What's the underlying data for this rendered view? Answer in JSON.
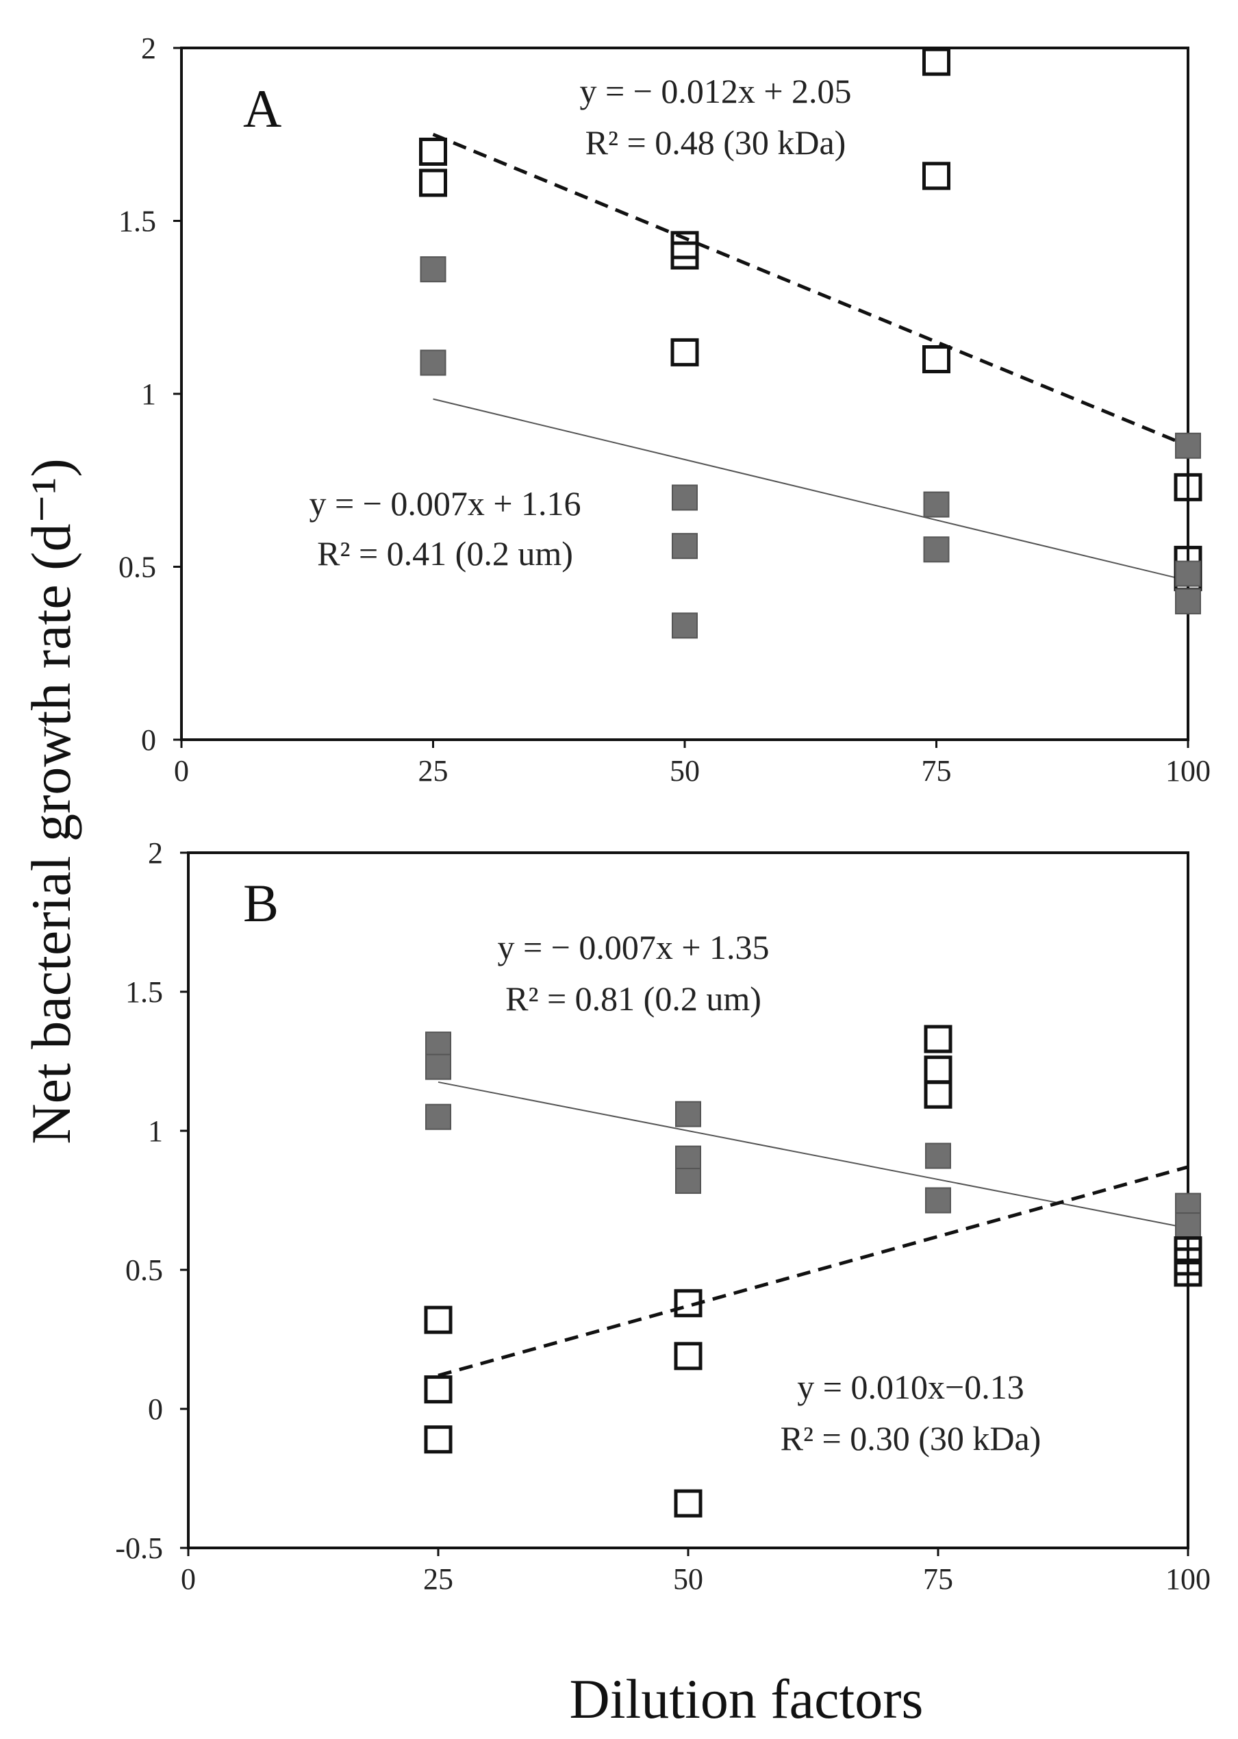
{
  "figure": {
    "ylabel": "Net bacterial growth rate (d⁻¹)",
    "xlabel": "Dilution factors"
  },
  "chart_data": [
    {
      "type": "scatter",
      "panel": "A",
      "xlim": [
        0,
        100
      ],
      "ylim": [
        0,
        2
      ],
      "xticks": [
        0,
        25,
        50,
        75,
        100
      ],
      "xtick_labels": [
        "0",
        "25",
        "50",
        "75",
        "100"
      ],
      "yticks": [
        0,
        0.5,
        1,
        1.5,
        2
      ],
      "ytick_labels": [
        "0",
        "0.5",
        "1",
        "1.5",
        "2"
      ],
      "series": [
        {
          "name": "30 kDa",
          "marker": "open-square",
          "points": [
            [
              25,
              1.7
            ],
            [
              25,
              1.61
            ],
            [
              50,
              1.43
            ],
            [
              50,
              1.4
            ],
            [
              50,
              1.12
            ],
            [
              75,
              1.96
            ],
            [
              75,
              1.63
            ],
            [
              75,
              1.1
            ],
            [
              100,
              0.73
            ],
            [
              100,
              0.52
            ],
            [
              100,
              0.47
            ]
          ],
          "trendline": {
            "slope": -0.012,
            "intercept": 2.05,
            "x_range": [
              25,
              100
            ],
            "style": "dashed"
          }
        },
        {
          "name": "0.2 um",
          "marker": "filled-square",
          "points": [
            [
              25,
              1.36
            ],
            [
              25,
              1.09
            ],
            [
              50,
              0.7
            ],
            [
              50,
              0.56
            ],
            [
              50,
              0.33
            ],
            [
              75,
              0.68
            ],
            [
              75,
              0.55
            ],
            [
              100,
              0.85
            ],
            [
              100,
              0.48
            ],
            [
              100,
              0.4
            ]
          ],
          "trendline": {
            "slope": -0.007,
            "intercept": 1.16,
            "x_range": [
              25,
              100
            ],
            "style": "solid"
          }
        }
      ],
      "annotations": [
        {
          "line1": "y = − 0.012x + 2.05",
          "line2": "R² = 0.48 (30 kDa)"
        },
        {
          "line1": "y = − 0.007x + 1.16",
          "line2": "R² = 0.41 (0.2 um)"
        }
      ]
    },
    {
      "type": "scatter",
      "panel": "B",
      "xlim": [
        0,
        100
      ],
      "ylim": [
        -0.5,
        2
      ],
      "xticks": [
        0,
        25,
        50,
        75,
        100
      ],
      "xtick_labels": [
        "0",
        "25",
        "50",
        "75",
        "100"
      ],
      "yticks": [
        -0.5,
        0,
        0.5,
        1,
        1.5,
        2
      ],
      "ytick_labels": [
        "-0.5",
        "0",
        "0.5",
        "1",
        "1.5",
        "2"
      ],
      "series": [
        {
          "name": "0.2 um",
          "marker": "filled-square",
          "points": [
            [
              25,
              1.31
            ],
            [
              25,
              1.23
            ],
            [
              25,
              1.05
            ],
            [
              50,
              1.06
            ],
            [
              50,
              0.9
            ],
            [
              50,
              0.82
            ],
            [
              75,
              0.91
            ],
            [
              75,
              0.75
            ],
            [
              100,
              0.73
            ],
            [
              100,
              0.66
            ]
          ],
          "trendline": {
            "slope": -0.007,
            "intercept": 1.35,
            "x_range": [
              25,
              100
            ],
            "style": "solid"
          }
        },
        {
          "name": "30 kDa",
          "marker": "open-square",
          "points": [
            [
              25,
              0.32
            ],
            [
              25,
              0.07
            ],
            [
              25,
              -0.11
            ],
            [
              50,
              0.38
            ],
            [
              50,
              0.19
            ],
            [
              50,
              -0.34
            ],
            [
              75,
              1.33
            ],
            [
              75,
              1.22
            ],
            [
              75,
              1.13
            ],
            [
              100,
              0.57
            ],
            [
              100,
              0.53
            ],
            [
              100,
              0.49
            ]
          ],
          "trendline": {
            "slope": 0.01,
            "intercept": -0.13,
            "x_range": [
              25,
              100
            ],
            "style": "dashed"
          }
        }
      ],
      "annotations": [
        {
          "line1": "y = − 0.007x + 1.35",
          "line2": "R² = 0.81 (0.2 um)"
        },
        {
          "line1": "y = 0.010x−0.13",
          "line2": "R² = 0.30 (30 kDa)"
        }
      ]
    }
  ]
}
